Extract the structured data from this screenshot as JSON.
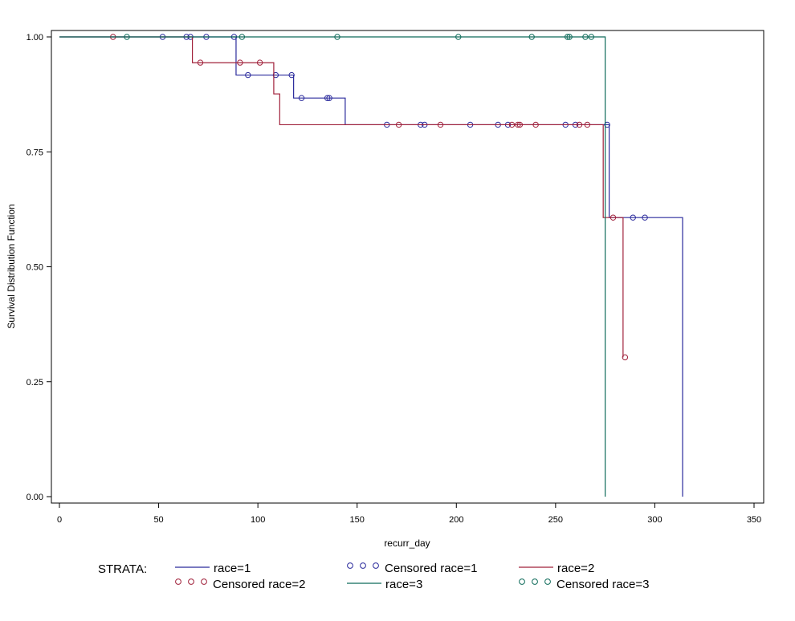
{
  "chart_data": {
    "type": "line",
    "title": "",
    "xlabel": "recurr_day",
    "ylabel": "Survival Distribution Function",
    "xlim": [
      0,
      350
    ],
    "ylim": [
      0,
      1
    ],
    "x_ticks": [
      0,
      50,
      100,
      150,
      200,
      250,
      300,
      350
    ],
    "x_tick_labels": [
      "0",
      "50",
      "100",
      "150",
      "200",
      "250",
      "300",
      "350"
    ],
    "y_ticks": [
      0,
      0.25,
      0.5,
      0.75,
      1
    ],
    "y_tick_labels": [
      "0.00",
      "0.25",
      "0.50",
      "0.75",
      "1.00"
    ],
    "grid": false,
    "legend_title": "STRATA:",
    "legend_position": "bottom",
    "legend_entries": [
      {
        "label": "race=1",
        "kind": "line",
        "color": "#2a2a9c"
      },
      {
        "label": "Censored race=1",
        "kind": "markers",
        "color": "#2a2a9c"
      },
      {
        "label": "race=2",
        "kind": "line",
        "color": "#a0203a"
      },
      {
        "label": "Censored race=2",
        "kind": "markers",
        "color": "#a0203a"
      },
      {
        "label": "race=3",
        "kind": "line",
        "color": "#0e6b5a"
      },
      {
        "label": "Censored race=3",
        "kind": "markers",
        "color": "#0e6b5a"
      }
    ],
    "series": [
      {
        "color": "#2a2a9c",
        "step_x": [
          0,
          89,
          118,
          144,
          277,
          314
        ],
        "step_y": [
          1.0,
          0.917,
          0.867,
          0.809,
          0.607,
          0.0
        ],
        "x_end": 314,
        "censored": [
          [
            52,
            1.0
          ],
          [
            64,
            1.0
          ],
          [
            66,
            1.0
          ],
          [
            74,
            1.0
          ],
          [
            88,
            1.0
          ],
          [
            95,
            0.917
          ],
          [
            109,
            0.917
          ],
          [
            117,
            0.917
          ],
          [
            122,
            0.867
          ],
          [
            135,
            0.867
          ],
          [
            136,
            0.867
          ],
          [
            165,
            0.809
          ],
          [
            182,
            0.809
          ],
          [
            184,
            0.809
          ],
          [
            207,
            0.809
          ],
          [
            221,
            0.809
          ],
          [
            226,
            0.809
          ],
          [
            255,
            0.809
          ],
          [
            260,
            0.809
          ],
          [
            276,
            0.809
          ],
          [
            289,
            0.607
          ],
          [
            295,
            0.607
          ]
        ]
      },
      {
        "color": "#a0203a",
        "step_x": [
          0,
          67,
          108,
          111,
          274,
          284
        ],
        "step_y": [
          1.0,
          0.944,
          0.876,
          0.809,
          0.607,
          0.303
        ],
        "x_end": 284,
        "censored": [
          [
            27,
            1.0
          ],
          [
            71,
            0.944
          ],
          [
            91,
            0.944
          ],
          [
            101,
            0.944
          ],
          [
            171,
            0.809
          ],
          [
            192,
            0.809
          ],
          [
            228,
            0.809
          ],
          [
            231,
            0.809
          ],
          [
            232,
            0.809
          ],
          [
            240,
            0.809
          ],
          [
            262,
            0.809
          ],
          [
            266,
            0.809
          ],
          [
            279,
            0.607
          ],
          [
            285,
            0.303
          ]
        ]
      },
      {
        "color": "#0e6b5a",
        "step_x": [
          0,
          275
        ],
        "step_y": [
          1.0,
          0.0
        ],
        "x_end": 275,
        "censored": [
          [
            34,
            1.0
          ],
          [
            92,
            1.0
          ],
          [
            140,
            1.0
          ],
          [
            201,
            1.0
          ],
          [
            238,
            1.0
          ],
          [
            256,
            1.0
          ],
          [
            257,
            1.0
          ],
          [
            265,
            1.0
          ],
          [
            268,
            1.0
          ]
        ]
      }
    ]
  }
}
